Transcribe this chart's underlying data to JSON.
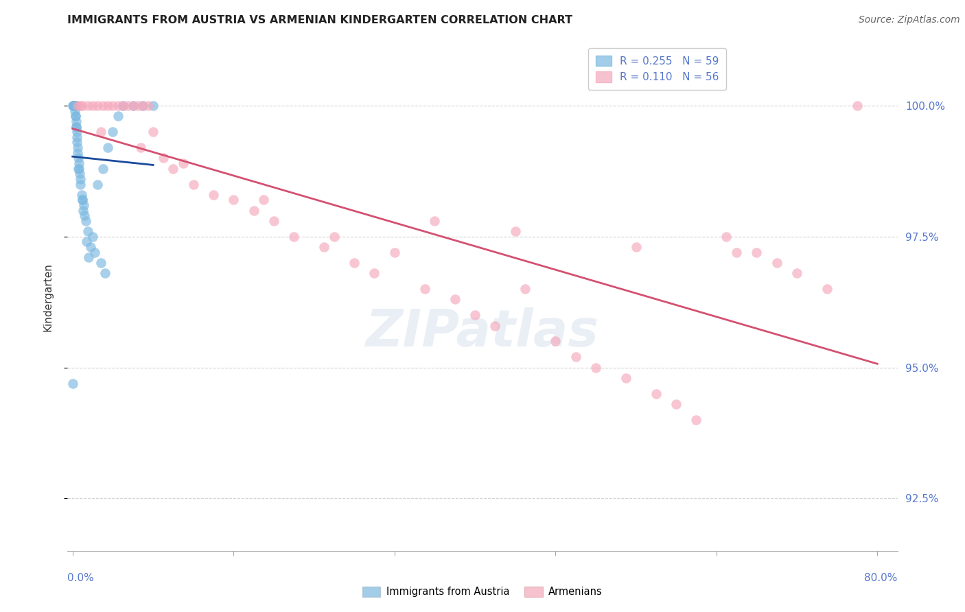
{
  "title": "IMMIGRANTS FROM AUSTRIA VS ARMENIAN KINDERGARTEN CORRELATION CHART",
  "source": "Source: ZipAtlas.com",
  "ylabel": "Kindergarten",
  "R_blue": 0.255,
  "N_blue": 59,
  "R_pink": 0.11,
  "N_pink": 56,
  "blue_color": "#7ab8e0",
  "pink_color": "#f5a8bc",
  "blue_edge_color": "#5090c0",
  "pink_edge_color": "#e07090",
  "blue_line_color": "#1a4a9a",
  "pink_line_color": "#d45070",
  "watermark": "ZIPatlas",
  "yticks": [
    92.5,
    95.0,
    97.5,
    100.0
  ],
  "ytick_labels": [
    "92.5%",
    "95.0%",
    "97.5%",
    "100.0%"
  ],
  "xlim_min": -0.5,
  "xlim_max": 82,
  "ylim_min": 91.5,
  "ylim_max": 101.2,
  "legend_label_blue": "Immigrants from Austria",
  "legend_label_pink": "Armenians",
  "blue_x": [
    0.05,
    0.08,
    0.1,
    0.12,
    0.15,
    0.18,
    0.2,
    0.22,
    0.25,
    0.28,
    0.3,
    0.32,
    0.35,
    0.38,
    0.4,
    0.42,
    0.45,
    0.5,
    0.55,
    0.6,
    0.65,
    0.7,
    0.8,
    0.9,
    1.0,
    1.1,
    1.2,
    1.3,
    1.5,
    1.8,
    2.0,
    2.5,
    3.0,
    3.5,
    4.0,
    0.06,
    0.09,
    0.11,
    0.14,
    0.17,
    0.23,
    0.27,
    0.33,
    0.48,
    0.58,
    0.75,
    0.95,
    1.05,
    1.4,
    1.6,
    2.2,
    2.8,
    3.2,
    4.5,
    5.0,
    6.0,
    7.0,
    8.0,
    0.03
  ],
  "blue_y": [
    100.0,
    100.0,
    100.0,
    100.0,
    100.0,
    100.0,
    100.0,
    100.0,
    100.0,
    100.0,
    100.0,
    99.8,
    99.7,
    99.6,
    99.5,
    99.4,
    99.3,
    99.2,
    99.0,
    98.9,
    98.8,
    98.7,
    98.5,
    98.3,
    98.2,
    98.1,
    97.9,
    97.8,
    97.6,
    97.3,
    97.5,
    98.5,
    98.8,
    99.2,
    99.5,
    100.0,
    100.0,
    100.0,
    100.0,
    100.0,
    99.9,
    99.8,
    99.6,
    99.1,
    98.8,
    98.6,
    98.2,
    98.0,
    97.4,
    97.1,
    97.2,
    97.0,
    96.8,
    99.8,
    100.0,
    100.0,
    100.0,
    100.0,
    94.7
  ],
  "pink_x": [
    0.5,
    1.0,
    1.5,
    2.0,
    2.5,
    3.0,
    3.5,
    4.0,
    4.5,
    5.0,
    5.5,
    6.0,
    6.5,
    7.0,
    7.5,
    8.0,
    9.0,
    10.0,
    12.0,
    14.0,
    16.0,
    18.0,
    20.0,
    22.0,
    25.0,
    28.0,
    30.0,
    32.0,
    35.0,
    38.0,
    40.0,
    42.0,
    45.0,
    48.0,
    50.0,
    52.0,
    55.0,
    58.0,
    60.0,
    62.0,
    65.0,
    68.0,
    70.0,
    72.0,
    75.0,
    78.0,
    0.8,
    2.8,
    6.8,
    11.0,
    19.0,
    26.0,
    36.0,
    44.0,
    56.0,
    66.0
  ],
  "pink_y": [
    100.0,
    100.0,
    100.0,
    100.0,
    100.0,
    100.0,
    100.0,
    100.0,
    100.0,
    100.0,
    100.0,
    100.0,
    100.0,
    100.0,
    100.0,
    99.5,
    99.0,
    98.8,
    98.5,
    98.3,
    98.2,
    98.0,
    97.8,
    97.5,
    97.3,
    97.0,
    96.8,
    97.2,
    96.5,
    96.3,
    96.0,
    95.8,
    96.5,
    95.5,
    95.2,
    95.0,
    94.8,
    94.5,
    94.3,
    94.0,
    97.5,
    97.2,
    97.0,
    96.8,
    96.5,
    100.0,
    100.0,
    99.5,
    99.2,
    98.9,
    98.2,
    97.5,
    97.8,
    97.6,
    97.3,
    97.2
  ]
}
